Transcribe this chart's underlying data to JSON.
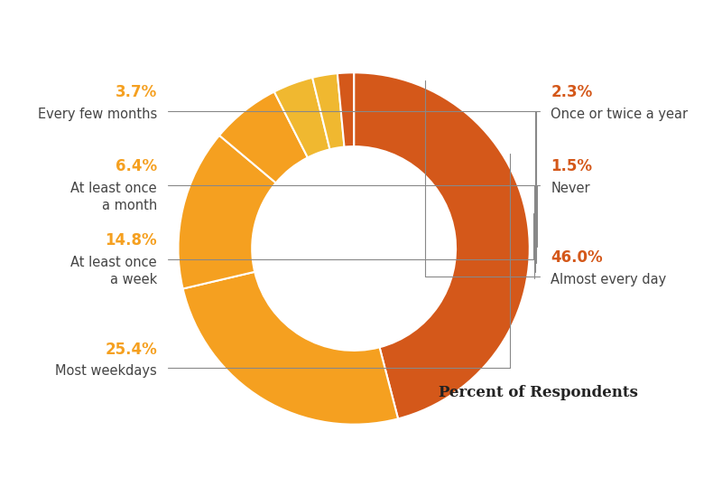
{
  "slices": [
    {
      "label": "Almost every day",
      "pct": 46.0,
      "color": "#D4581A",
      "pct_color": "#D4581A",
      "side": "right"
    },
    {
      "label": "Most weekdays",
      "pct": 25.4,
      "color": "#F5A020",
      "pct_color": "#F5A020",
      "side": "left"
    },
    {
      "label": "At least once\na week",
      "pct": 14.8,
      "color": "#F5A020",
      "pct_color": "#F5A020",
      "side": "left"
    },
    {
      "label": "At least once\na month",
      "pct": 6.4,
      "color": "#F5A020",
      "pct_color": "#F5A020",
      "side": "left"
    },
    {
      "label": "Every few months",
      "pct": 3.7,
      "color": "#F0B830",
      "pct_color": "#F5A020",
      "side": "left"
    },
    {
      "label": "Once or twice a year",
      "pct": 2.3,
      "color": "#F0B830",
      "pct_color": "#D4581A",
      "side": "right"
    },
    {
      "label": "Never",
      "pct": 1.5,
      "color": "#D4581A",
      "pct_color": "#D4581A",
      "side": "right"
    }
  ],
  "donut_width": 0.42,
  "background_color": "#FFFFFF",
  "pct_fontsize": 12,
  "label_fontsize": 10.5,
  "label_text_color": "#444444",
  "footer_text": "Percent of Respondents",
  "footer_fontsize": 12,
  "footer_color": "#222222",
  "line_color": "#888888",
  "start_angle": 90
}
